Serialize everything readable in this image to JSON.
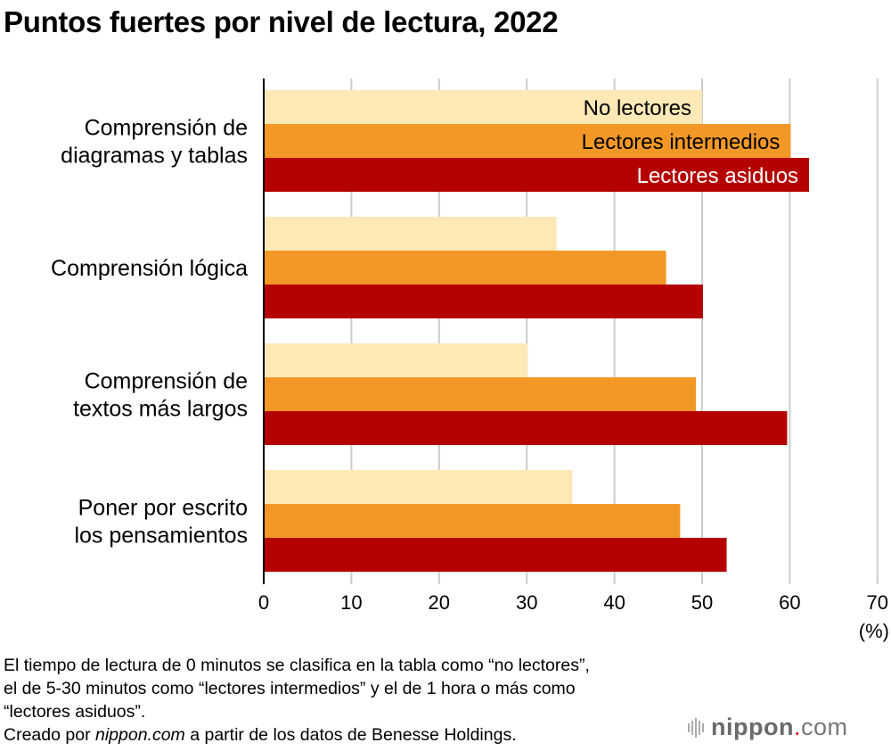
{
  "chart_data": {
    "type": "bar",
    "orientation": "horizontal",
    "title": "Puntos fuertes por nivel de lectura, 2022",
    "xlabel": "",
    "unit_label": "(%)",
    "xlim": [
      0,
      70
    ],
    "xticks": [
      0,
      10,
      20,
      30,
      40,
      50,
      60,
      70
    ],
    "grid": true,
    "categories": [
      [
        "Comprensión de",
        "diagramas y tablas"
      ],
      [
        "Comprensión lógica"
      ],
      [
        "Comprensión de",
        "textos más largos"
      ],
      [
        "Poner por escrito",
        "los pensamientos"
      ]
    ],
    "series": [
      {
        "name": "No lectores",
        "color": "#fde8b6",
        "text_color": "#000000",
        "values": [
          50.0,
          33.4,
          30.1,
          35.2
        ]
      },
      {
        "name": "Lectores intermedios",
        "color": "#f39826",
        "text_color": "#000000",
        "values": [
          60.1,
          45.9,
          49.3,
          47.5
        ]
      },
      {
        "name": "Lectores asiduos",
        "color": "#b50000",
        "text_color": "#ffffff",
        "values": [
          62.2,
          50.1,
          59.7,
          52.8
        ]
      }
    ],
    "legend": "inside-first-group-bars"
  },
  "footer": {
    "note_lines": [
      "El tiempo de lectura de 0 minutos se clasifica en la tabla como “no lectores”,",
      "el de 5-30 minutos como “lectores intermedios” y el de 1 hora o más como",
      "“lectores asiduos”."
    ],
    "credit_prefix": "Creado por ",
    "credit_source": "nippon.com",
    "credit_suffix": " a partir de los datos de Benesse Holdings."
  },
  "logo": {
    "brand_main": "nippon",
    "brand_dot": ".",
    "brand_tld": "com"
  }
}
